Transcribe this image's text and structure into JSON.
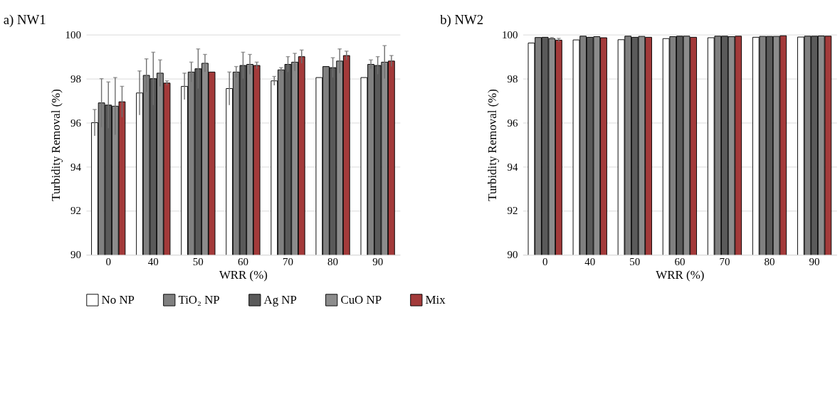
{
  "chart_data": [
    {
      "type": "bar",
      "title": "a) NW1",
      "xlabel": "WRR (%)",
      "ylabel": "Turbidity Removal (%)",
      "categories": [
        "0",
        "40",
        "50",
        "60",
        "70",
        "80",
        "90"
      ],
      "ylim": [
        90,
        100
      ],
      "yticks": [
        90,
        92,
        94,
        96,
        98,
        100
      ],
      "grid": "y",
      "legend": "bottom",
      "series": [
        {
          "name": "No NP",
          "color": "#ffffff",
          "values": [
            96.0,
            97.35,
            97.65,
            97.55,
            97.9,
            98.05,
            98.05
          ],
          "errors": [
            0.6,
            1.0,
            0.6,
            0.75,
            0.2,
            null,
            null
          ]
        },
        {
          "name": "TiO₂ NP",
          "color": "#808080",
          "values": [
            96.9,
            98.15,
            98.3,
            98.3,
            98.4,
            98.55,
            98.65
          ],
          "errors": [
            1.1,
            0.75,
            0.45,
            0.25,
            0.1,
            null,
            0.2
          ]
        },
        {
          "name": "Ag NP",
          "color": "#5a5a5a",
          "values": [
            96.8,
            98.0,
            98.45,
            98.6,
            98.65,
            98.5,
            98.6
          ],
          "errors": [
            1.05,
            1.2,
            0.9,
            0.6,
            0.35,
            0.45,
            0.4
          ]
        },
        {
          "name": "CuO NP",
          "color": "#8c8c8c",
          "values": [
            96.75,
            98.25,
            98.7,
            98.65,
            98.75,
            98.8,
            98.75
          ],
          "errors": [
            1.3,
            0.6,
            0.4,
            0.45,
            0.4,
            0.55,
            0.75
          ]
        },
        {
          "name": "Mix",
          "color": "#a33a3a",
          "values": [
            96.95,
            97.8,
            98.3,
            98.6,
            99.0,
            99.05,
            98.8
          ],
          "errors": [
            0.7,
            0.1,
            null,
            0.15,
            0.3,
            0.2,
            0.25
          ]
        }
      ]
    },
    {
      "type": "bar",
      "title": "b) NW2",
      "xlabel": "WRR (%)",
      "ylabel": "Turbidity Removal (%)",
      "categories": [
        "0",
        "40",
        "50",
        "60",
        "70",
        "80",
        "90"
      ],
      "ylim": [
        90,
        100
      ],
      "yticks": [
        90,
        92,
        94,
        96,
        98,
        100
      ],
      "grid": "y",
      "series": [
        {
          "name": "No NP",
          "color": "#ffffff",
          "values": [
            99.62,
            99.76,
            99.77,
            99.82,
            99.86,
            99.88,
            99.89
          ]
        },
        {
          "name": "TiO₂ NP",
          "color": "#808080",
          "values": [
            99.87,
            99.93,
            99.93,
            99.91,
            99.93,
            99.92,
            99.93
          ]
        },
        {
          "name": "Ag NP",
          "color": "#5a5a5a",
          "values": [
            99.88,
            99.88,
            99.88,
            99.93,
            99.93,
            99.92,
            99.93
          ]
        },
        {
          "name": "CuO NP",
          "color": "#8c8c8c",
          "values": [
            99.82,
            99.91,
            99.92,
            99.93,
            99.91,
            99.92,
            99.94
          ],
          "errors": [
            0.05,
            null,
            null,
            null,
            null,
            null,
            null
          ]
        },
        {
          "name": "Mix",
          "color": "#a33a3a",
          "values": [
            99.75,
            99.86,
            99.88,
            99.88,
            99.93,
            99.95,
            99.93
          ],
          "errors": [
            0.08,
            null,
            null,
            null,
            null,
            null,
            null
          ]
        }
      ]
    }
  ]
}
